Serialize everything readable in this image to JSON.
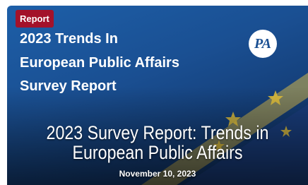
{
  "card": {
    "badge": "Report",
    "image_heading": [
      "2023 Trends In",
      "European Public Affairs",
      "Survey Report"
    ],
    "logo": "PA",
    "title": "2023 Survey Report: Trends in European Public Affairs",
    "date": "November 10, 2023"
  }
}
